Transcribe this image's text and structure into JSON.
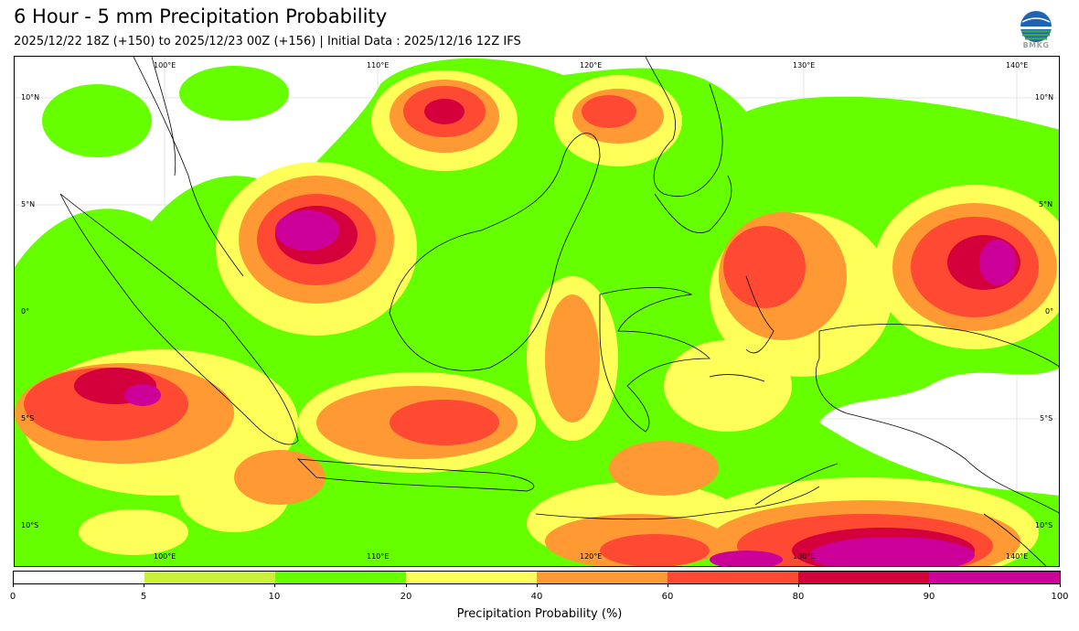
{
  "header": {
    "title": "6 Hour - 5 mm Precipitation Probability",
    "subtitle": "2025/12/22 18Z (+150) to 2025/12/23 00Z (+156) | Initial Data : 2025/12/16 12Z IFS"
  },
  "logo": {
    "text": "BMKG"
  },
  "map": {
    "longitude_labels": [
      "100°E",
      "110°E",
      "120°E",
      "130°E",
      "140°E"
    ],
    "latitude_labels": [
      "10°N",
      "5°N",
      "0°",
      "5°S",
      "10°S"
    ],
    "colors": {
      "land_outline": "#000000",
      "p5": "#c8f03c",
      "p10": "#66ff00",
      "p20": "#ffff5a",
      "p40": "#ff9933",
      "p60": "#ff4a33",
      "p80": "#d4003c",
      "p90": "#cc0099"
    }
  },
  "colorbar": {
    "ticks": [
      "0",
      "5",
      "10",
      "20",
      "40",
      "60",
      "80",
      "90",
      "100"
    ],
    "colors": [
      "#ffffff",
      "#c8f03c",
      "#66ff00",
      "#ffff5a",
      "#ff9933",
      "#ff4a33",
      "#d4003c",
      "#cc0099"
    ],
    "label": "Precipitation Probability (%)"
  }
}
